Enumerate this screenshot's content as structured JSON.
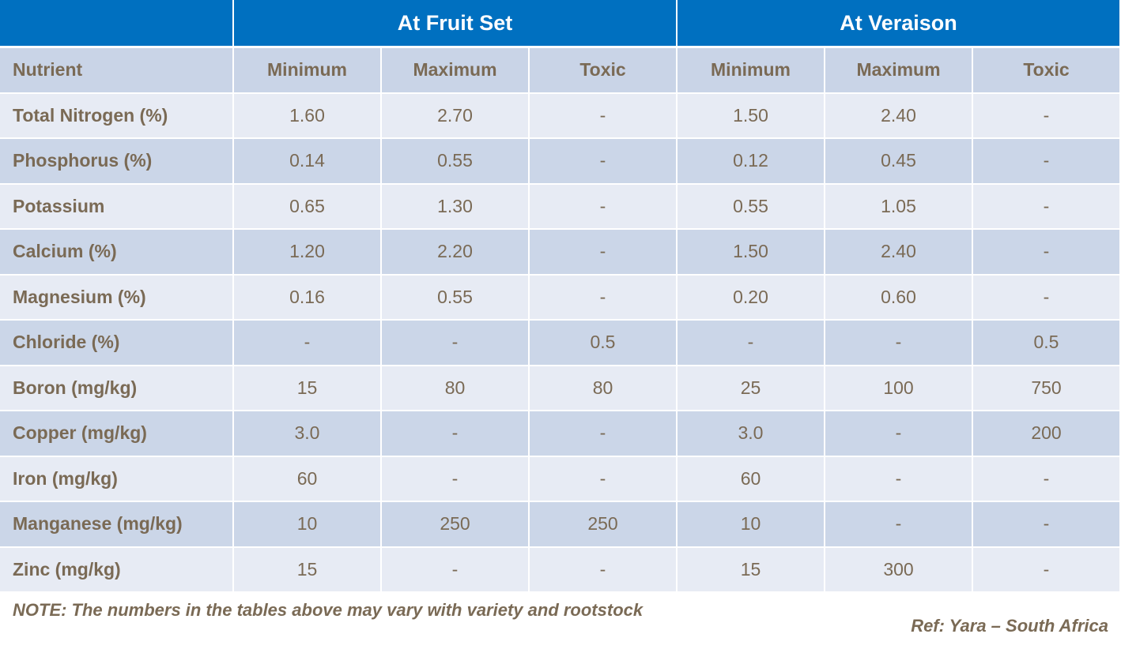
{
  "header": {
    "groups": [
      "At Fruit Set",
      "At Veraison"
    ]
  },
  "table": {
    "columns": [
      "Nutrient",
      "Minimum",
      "Maximum",
      "Toxic",
      "Minimum",
      "Maximum",
      "Toxic"
    ],
    "rows": [
      [
        "Total Nitrogen (%)",
        "1.60",
        "2.70",
        "-",
        "1.50",
        "2.40",
        "-"
      ],
      [
        "Phosphorus (%)",
        "0.14",
        "0.55",
        "-",
        "0.12",
        "0.45",
        "-"
      ],
      [
        "Potassium",
        "0.65",
        "1.30",
        "-",
        "0.55",
        "1.05",
        "-"
      ],
      [
        "Calcium (%)",
        "1.20",
        "2.20",
        "-",
        "1.50",
        "2.40",
        "-"
      ],
      [
        "Magnesium (%)",
        "0.16",
        "0.55",
        "-",
        "0.20",
        "0.60",
        "-"
      ],
      [
        "Chloride (%)",
        "-",
        "-",
        "0.5",
        "-",
        "-",
        "0.5"
      ],
      [
        "Boron (mg/kg)",
        "15",
        "80",
        "80",
        "25",
        "100",
        "750"
      ],
      [
        "Copper (mg/kg)",
        "3.0",
        "-",
        "-",
        "3.0",
        "-",
        "200"
      ],
      [
        "Iron (mg/kg)",
        "60",
        "-",
        "-",
        "60",
        "-",
        "-"
      ],
      [
        "Manganese (mg/kg)",
        "10",
        "250",
        "250",
        "10",
        "-",
        "-"
      ],
      [
        "Zinc (mg/kg)",
        "15",
        "-",
        "-",
        "15",
        "300",
        "-"
      ]
    ]
  },
  "note": "NOTE: The numbers in the tables above may vary with variety and rootstock",
  "ref": "Ref: Yara – South Africa"
}
